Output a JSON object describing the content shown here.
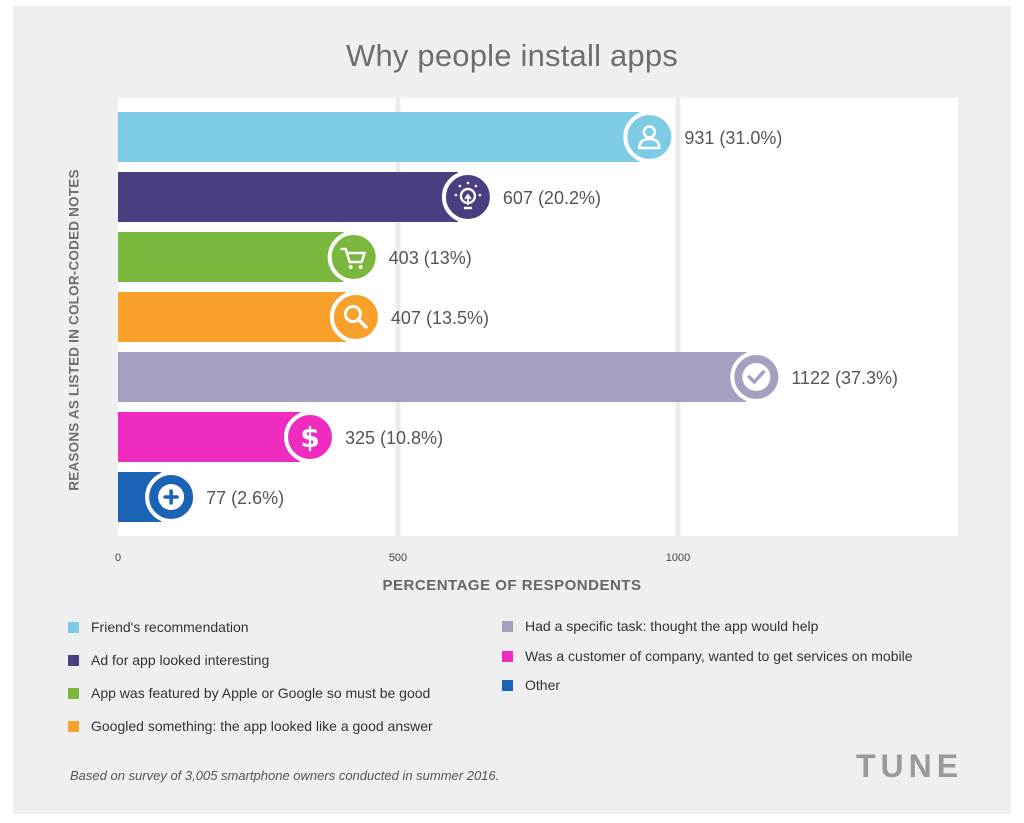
{
  "chart_data": {
    "type": "bar",
    "orientation": "horizontal",
    "title": "Why people install apps",
    "ylabel": "REASONS AS LISTED IN COLOR-CODED NOTES",
    "xlabel": "PERCENTAGE OF RESPONDENTS",
    "xlim": [
      0,
      1500
    ],
    "xticks": [
      0,
      500,
      1000
    ],
    "grid": true,
    "bars": [
      {
        "category": "Friend's recommendation",
        "value": 931,
        "label": "931 (31.0%)",
        "color": "#7ecbe6",
        "icon": "user-icon"
      },
      {
        "category": "Ad for app looked interesting",
        "value": 607,
        "label": "607 (20.2%)",
        "color": "#4b3f82",
        "icon": "lightbulb-icon"
      },
      {
        "category": "App was featured by Apple or Google so must be good",
        "value": 403,
        "label": "403 (13%)",
        "color": "#79b83c",
        "icon": "cart-icon"
      },
      {
        "category": "Googled something: the app looked like a good answer",
        "value": 407,
        "label": "407 (13.5%)",
        "color": "#f7a12b",
        "icon": "search-icon"
      },
      {
        "category": "Had a specific task: thought the app would help",
        "value": 1122,
        "label": "1122 (37.3%)",
        "color": "#a59fc0",
        "icon": "check-icon"
      },
      {
        "category": "Was a customer of company, wanted to get services on mobile",
        "value": 325,
        "label": "325 (10.8%)",
        "color": "#f02cc0",
        "icon": "dollar-icon"
      },
      {
        "category": "Other",
        "value": 77,
        "label": "77 (2.6%)",
        "color": "#1b63b5",
        "icon": "plus-icon"
      }
    ]
  },
  "legend": {
    "left": [
      {
        "label": "Friend's recommendation",
        "color": "#7ecbe6"
      },
      {
        "label": "Ad for app looked interesting",
        "color": "#4b3f82"
      },
      {
        "label": "App was featured by Apple or Google so must be good",
        "color": "#79b83c"
      },
      {
        "label": "Googled something: the app looked like a good answer",
        "color": "#f7a12b"
      }
    ],
    "right": [
      {
        "label": "Had a specific task: thought the app would help",
        "color": "#a59fc0"
      },
      {
        "label": "Was a customer of company, wanted to get services on mobile",
        "color": "#f02cc0"
      },
      {
        "label": "Other",
        "color": "#1b63b5"
      }
    ]
  },
  "footnote": "Based on survey of 3,005 smartphone owners conducted in summer 2016.",
  "brand": "TUNE"
}
